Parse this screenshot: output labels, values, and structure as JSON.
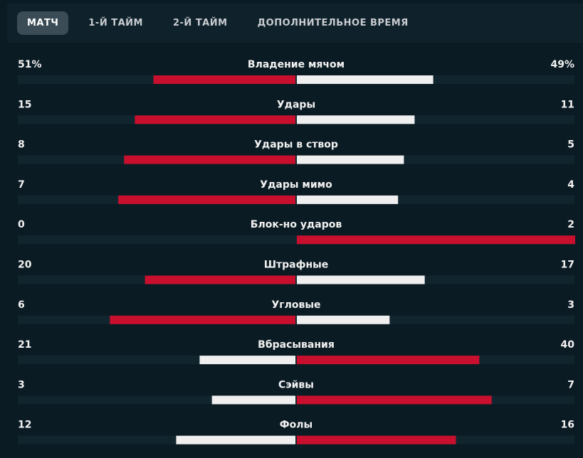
{
  "tabs": [
    "МАТЧ",
    "1-Й ТАЙМ",
    "2-Й ТАЙМ",
    "ДОПОЛНИТЕЛЬНОЕ ВРЕМЯ"
  ],
  "active_tab": 0,
  "colors": {
    "leader": "#c8102e",
    "trailer": "#efefef",
    "track": "#11252f"
  },
  "stats": [
    {
      "label": "Владение мячом",
      "home": 51,
      "away": 49,
      "home_label": "51%",
      "away_label": "49%"
    },
    {
      "label": "Удары",
      "home": 15,
      "away": 11
    },
    {
      "label": "Удары в створ",
      "home": 8,
      "away": 5
    },
    {
      "label": "Удары мимо",
      "home": 7,
      "away": 4
    },
    {
      "label": "Блок-но ударов",
      "home": 0,
      "away": 2
    },
    {
      "label": "Штрафные",
      "home": 20,
      "away": 17
    },
    {
      "label": "Угловые",
      "home": 6,
      "away": 3
    },
    {
      "label": "Вбрасывания",
      "home": 21,
      "away": 40
    },
    {
      "label": "Сэйвы",
      "home": 3,
      "away": 7
    },
    {
      "label": "Фолы",
      "home": 12,
      "away": 16
    }
  ]
}
